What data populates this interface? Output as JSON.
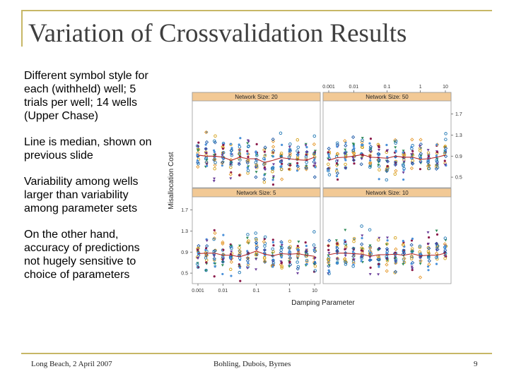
{
  "slide": {
    "title": "Variation of Crossvalidation Results",
    "bullets": [
      "Different symbol style for each (withheld) well; 5 trials per well; 14 wells (Upper Chase)",
      "Line is median, shown on previous slide",
      "Variability among wells larger than variability among parameter sets",
      "On the other hand, accuracy of predictions not hugely sensitive to choice of parameters"
    ],
    "footer": {
      "left": "Long Beach, 2 April 2007",
      "center": "Bohling, Dubois, Byrnes",
      "page": "9"
    }
  },
  "colors": {
    "accent_rule": "#c7b766",
    "strip": "#f2c995",
    "median_line": "#b22222",
    "symbols": [
      "#1f77b4",
      "#4a90d9",
      "#2e8b57",
      "#e69a2e",
      "#d4a017",
      "#8b1a4a",
      "#6a3d9a",
      "#1e5aa8"
    ]
  },
  "chart_data": {
    "type": "scatter",
    "xlabel": "Damping Parameter",
    "ylabel": "Misallocation Cost",
    "x_ticks": [
      "0.001",
      "0.01",
      "0.1",
      "1",
      "10"
    ],
    "y_ticks": [
      "0.5",
      "0.9",
      "1.3",
      "1.7"
    ],
    "ylim": [
      0.3,
      1.95
    ],
    "x_scale": "log",
    "panels": [
      {
        "strip": "Network Size: 20",
        "median": [
          0.92,
          0.9,
          0.9,
          0.88,
          0.82,
          0.88,
          0.85,
          0.85,
          0.78,
          0.82,
          0.87,
          0.85,
          0.83,
          0.82,
          0.88
        ]
      },
      {
        "strip": "Network Size: 50",
        "median": [
          0.82,
          0.87,
          0.88,
          0.9,
          0.93,
          0.88,
          0.87,
          0.86,
          0.9,
          0.88,
          0.88,
          0.84,
          0.85,
          0.88,
          0.92
        ]
      },
      {
        "strip": "Network Size: 5",
        "median": [
          0.87,
          0.88,
          0.88,
          0.84,
          0.84,
          0.81,
          0.86,
          0.92,
          0.86,
          0.83,
          0.87,
          0.86,
          0.87,
          0.84,
          0.82
        ]
      },
      {
        "strip": "Network Size: 10",
        "median": [
          0.85,
          0.88,
          0.88,
          0.87,
          0.86,
          0.82,
          0.85,
          0.85,
          0.86,
          0.84,
          0.87,
          0.83,
          0.84,
          0.84,
          0.88
        ]
      }
    ]
  }
}
